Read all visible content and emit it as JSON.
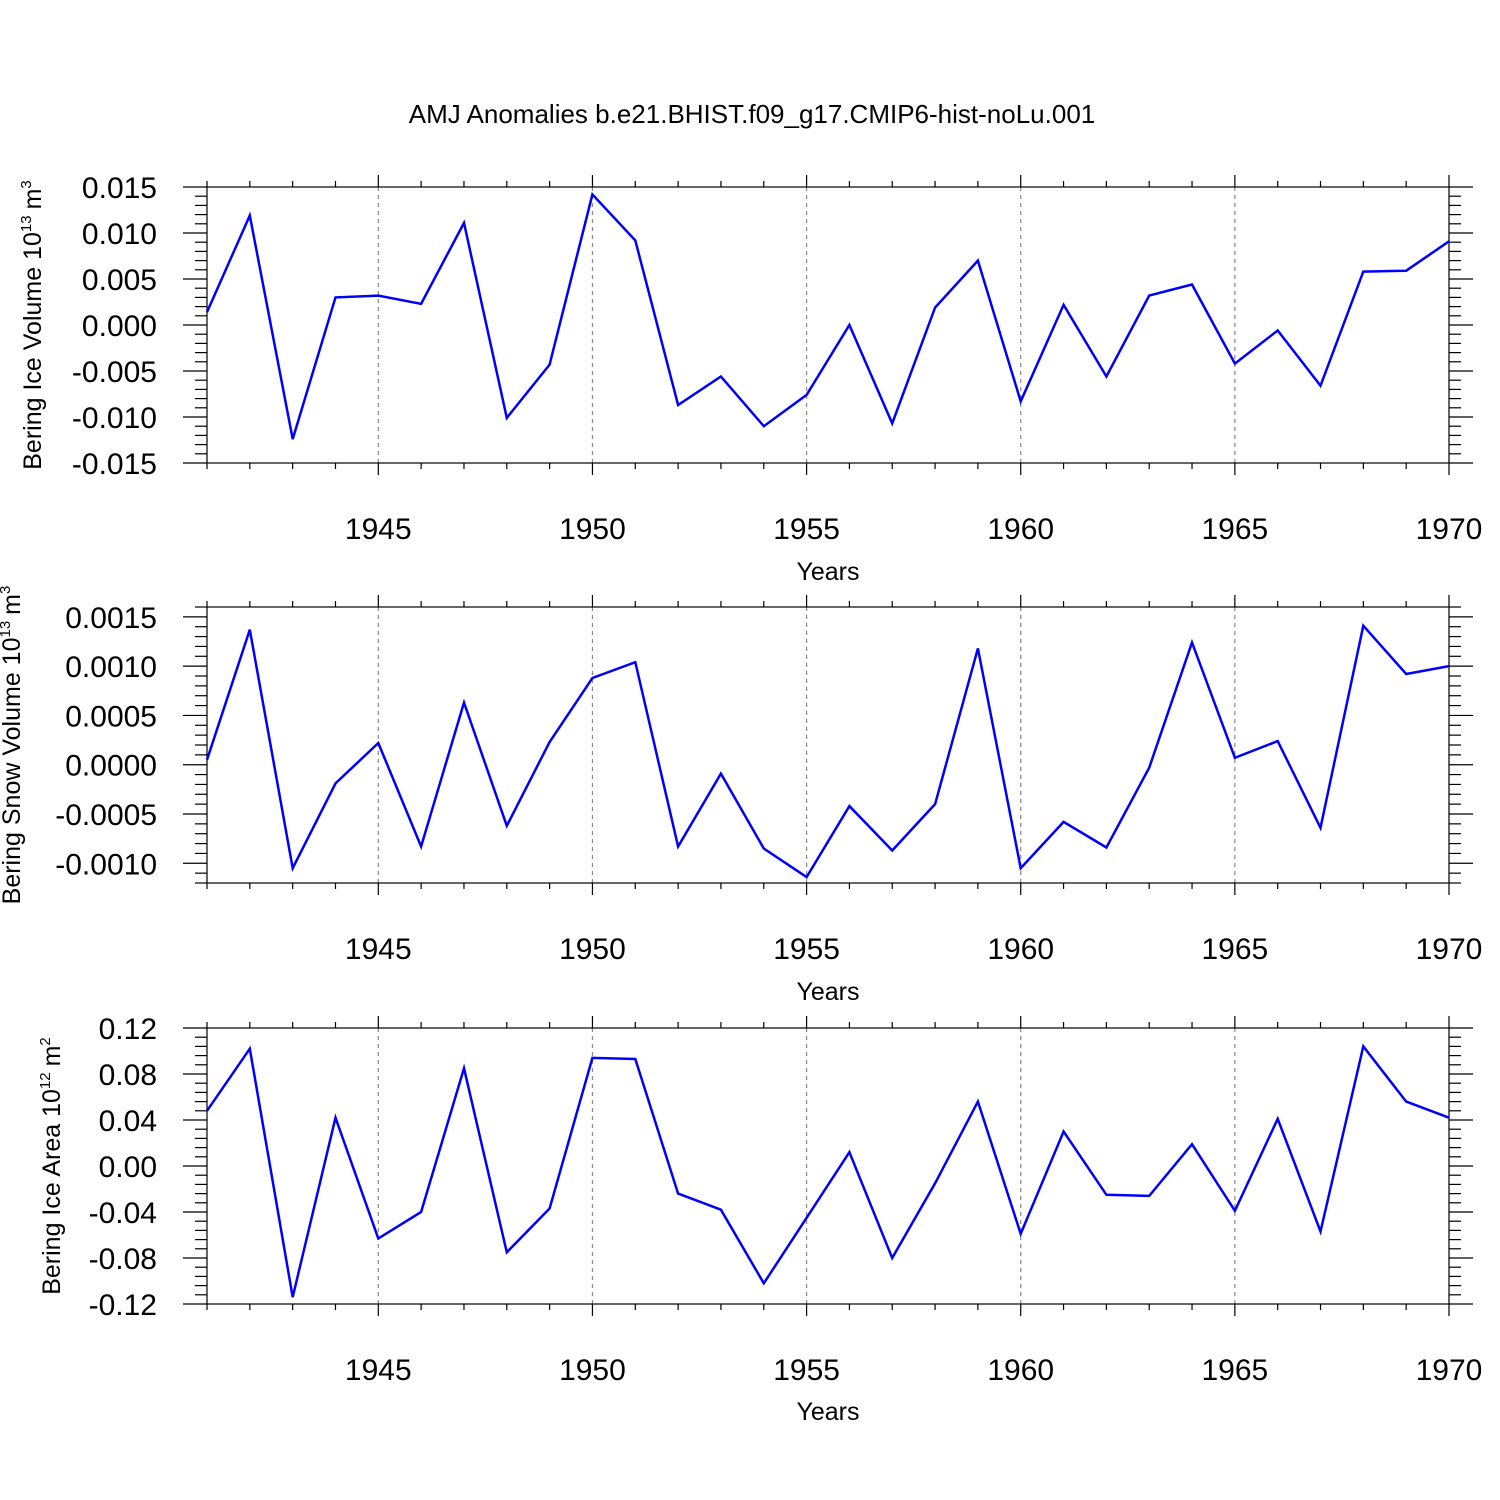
{
  "chart_data": {
    "title": "AMJ Anomalies b.e21.BHIST.f09_g17.CMIP6-hist-noLu.001",
    "x": [
      1941,
      1942,
      1943,
      1944,
      1945,
      1946,
      1947,
      1948,
      1949,
      1950,
      1951,
      1952,
      1953,
      1954,
      1955,
      1956,
      1957,
      1958,
      1959,
      1960,
      1961,
      1962,
      1963,
      1964,
      1965,
      1966,
      1967,
      1968,
      1969,
      1970
    ],
    "xlim": [
      1941,
      1970
    ],
    "xticks": [
      1945,
      1950,
      1955,
      1960,
      1965,
      1970
    ],
    "xtick_labels": [
      "1945",
      "1950",
      "1955",
      "1960",
      "1965",
      "1970"
    ],
    "panels": [
      {
        "type": "line",
        "xlabel": "Years",
        "ylabel": "Bering Ice Volume 10",
        "ylabel_exp": "13",
        "ylabel_unit": "m",
        "ylabel_unit_exp": "3",
        "ylim": [
          -0.015,
          0.015
        ],
        "yticks": [
          0.015,
          0.01,
          0.005,
          0.0,
          -0.005,
          -0.01,
          -0.015
        ],
        "ytick_labels": [
          "0.015",
          "0.010",
          "0.005",
          "0.000",
          "-0.005",
          "-0.010",
          "-0.015"
        ],
        "series": [
          {
            "name": "Bering Ice Volume",
            "color": "#0000ff",
            "values": [
              0.0014,
              0.0119,
              -0.0124,
              0.003,
              0.0032,
              0.0023,
              0.0111,
              -0.0101,
              -0.0043,
              0.0142,
              0.0092,
              -0.0087,
              -0.0056,
              -0.011,
              -0.0076,
              0.0,
              -0.0107,
              0.0019,
              0.007,
              -0.0083,
              0.0022,
              -0.0056,
              0.0032,
              0.0044,
              -0.0042,
              -0.0006,
              -0.0066,
              0.0058,
              0.0059,
              0.0091
            ]
          }
        ]
      },
      {
        "type": "line",
        "xlabel": "Years",
        "ylabel": "Bering Snow Volume 10",
        "ylabel_exp": "13",
        "ylabel_unit": "m",
        "ylabel_unit_exp": "3",
        "ylim": [
          -0.0012,
          0.0016
        ],
        "yticks": [
          0.0015,
          0.001,
          0.0005,
          0.0,
          -0.0005,
          -0.001
        ],
        "ytick_labels": [
          "0.0015",
          "0.0010",
          "0.0005",
          "0.0000",
          "-0.0005",
          "-0.0010"
        ],
        "series": [
          {
            "name": "Bering Snow Volume",
            "color": "#0000ff",
            "values": [
              5e-05,
              0.00137,
              -0.00105,
              -0.00019,
              0.00022,
              -0.00083,
              0.00063,
              -0.00062,
              0.00023,
              0.00088,
              0.00104,
              -0.00083,
              -9e-05,
              -0.00085,
              -0.00114,
              -0.00042,
              -0.00087,
              -0.0004,
              0.00118,
              -0.00105,
              -0.00058,
              -0.00084,
              -3e-05,
              0.00124,
              7e-05,
              0.00024,
              -0.00064,
              0.00141,
              0.00092,
              0.001
            ]
          }
        ]
      },
      {
        "type": "line",
        "xlabel": "Years",
        "ylabel": "Bering Ice Area 10",
        "ylabel_exp": "12",
        "ylabel_unit": "m",
        "ylabel_unit_exp": "2",
        "ylim": [
          -0.12,
          0.12
        ],
        "yticks": [
          0.12,
          0.08,
          0.04,
          0.0,
          -0.04,
          -0.08,
          -0.12
        ],
        "ytick_labels": [
          "0.12",
          "0.08",
          "0.04",
          "0.00",
          "-0.04",
          "-0.08",
          "-0.12"
        ],
        "series": [
          {
            "name": "Bering Ice Area",
            "color": "#0000ff",
            "values": [
              0.048,
              0.102,
              -0.114,
              0.042,
              -0.063,
              -0.04,
              0.085,
              -0.075,
              -0.037,
              0.094,
              0.093,
              -0.024,
              -0.038,
              -0.102,
              -0.045,
              0.012,
              -0.08,
              -0.015,
              0.056,
              -0.059,
              0.03,
              -0.025,
              -0.026,
              0.019,
              -0.039,
              0.041,
              -0.057,
              0.104,
              0.056,
              0.042
            ]
          }
        ]
      }
    ]
  }
}
